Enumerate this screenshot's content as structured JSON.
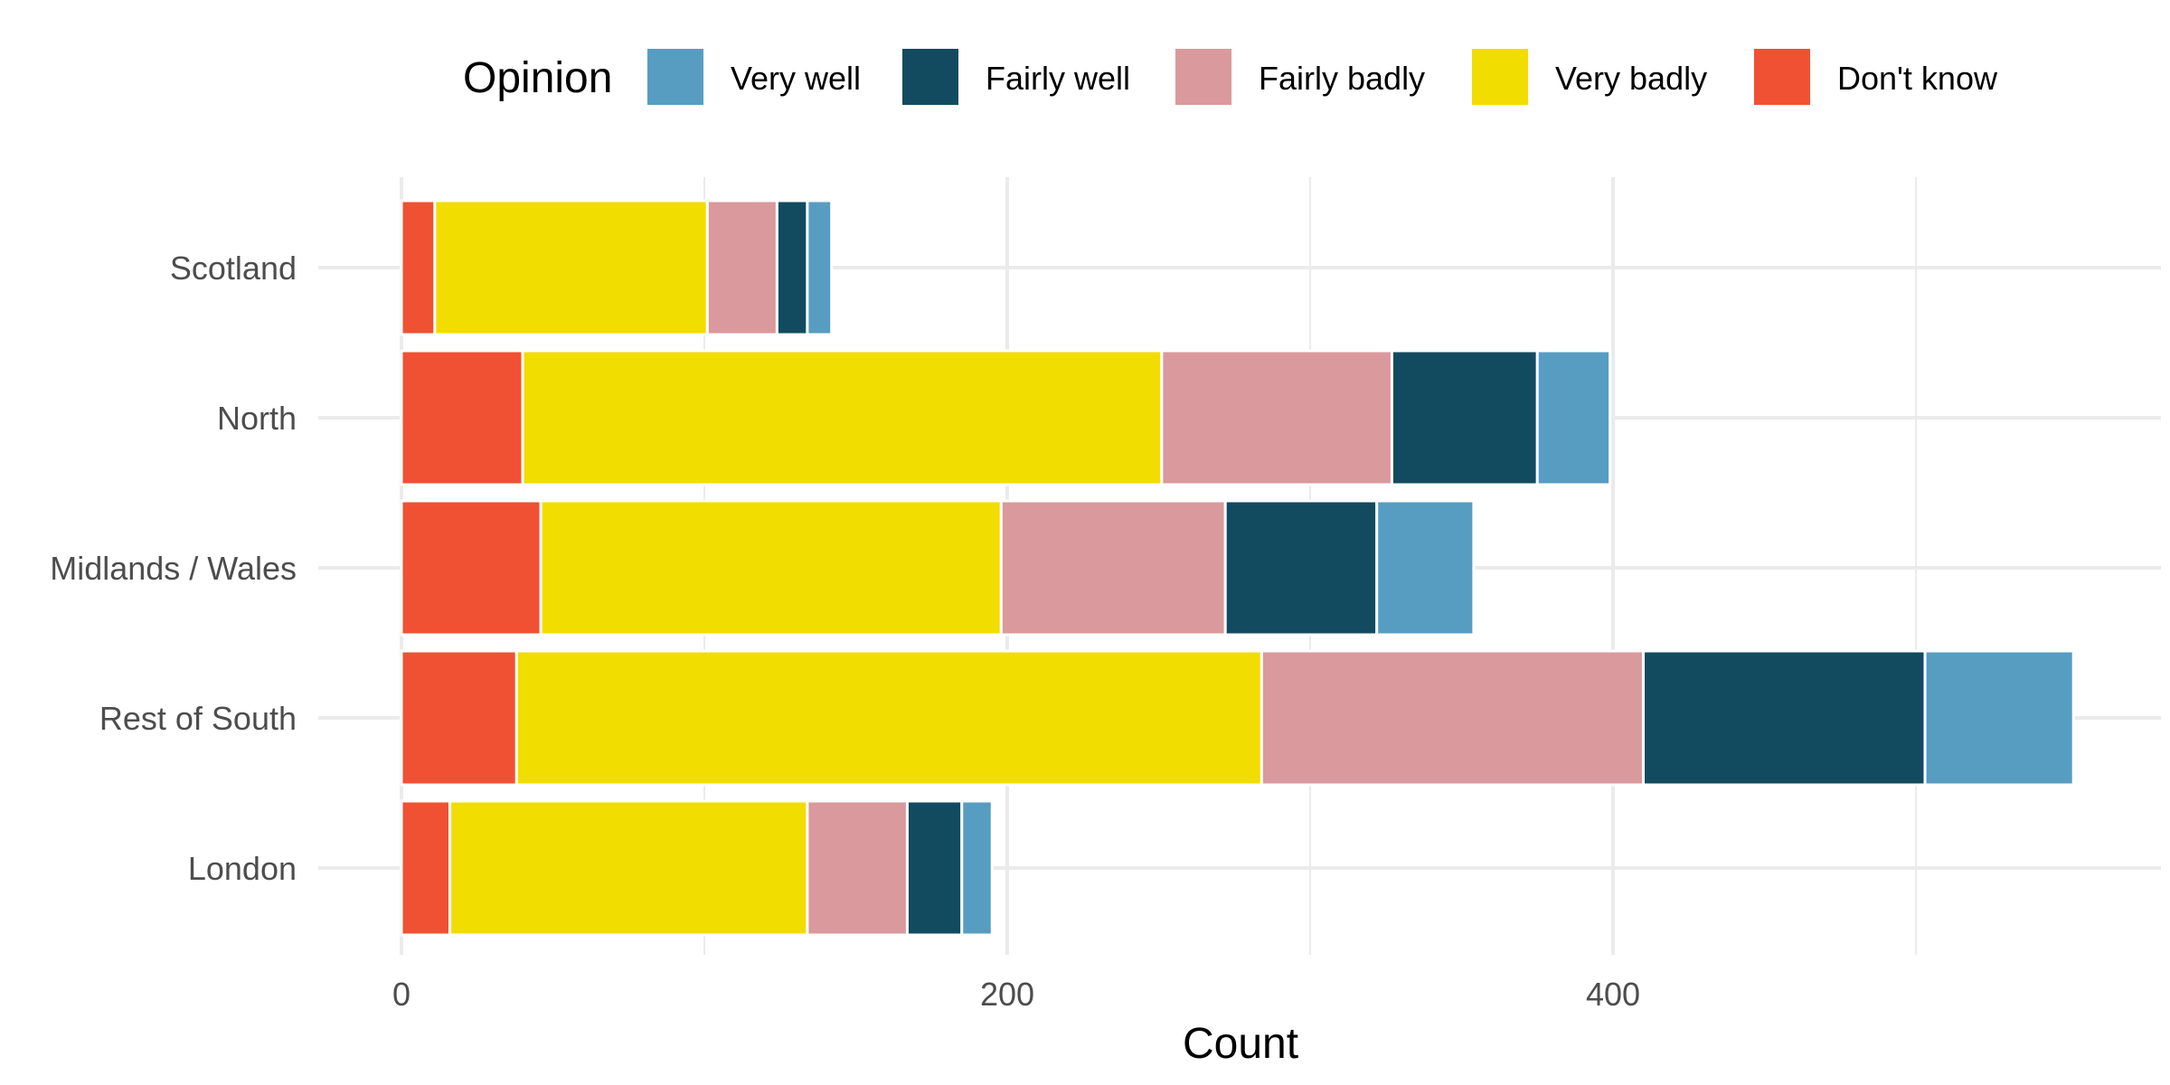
{
  "chart_data": {
    "type": "bar",
    "orientation": "horizontal",
    "stacked": true,
    "categories": [
      "Scotland",
      "North",
      "Midlands / Wales",
      "Rest of South",
      "London"
    ],
    "series": [
      {
        "name": "Don't know",
        "color": "#F05133",
        "values": [
          11,
          40,
          46,
          38,
          16
        ]
      },
      {
        "name": "Very badly",
        "color": "#F2DD00",
        "values": [
          90,
          211,
          152,
          246,
          118
        ]
      },
      {
        "name": "Fairly badly",
        "color": "#DA999D",
        "values": [
          23,
          76,
          74,
          126,
          33
        ]
      },
      {
        "name": "Fairly well",
        "color": "#124B5F",
        "values": [
          10,
          48,
          50,
          93,
          18
        ]
      },
      {
        "name": "Very well",
        "color": "#579DC1",
        "values": [
          8,
          24,
          32,
          49,
          10
        ]
      }
    ],
    "legend": {
      "title": "Opinion",
      "position": "top",
      "order": [
        "Very well",
        "Fairly well",
        "Fairly badly",
        "Very badly",
        "Don't know"
      ]
    },
    "xlabel": "Count",
    "ylabel": "",
    "xticks": [
      "0",
      "200",
      "400"
    ],
    "xlim": [
      0,
      580
    ],
    "grid": true
  }
}
